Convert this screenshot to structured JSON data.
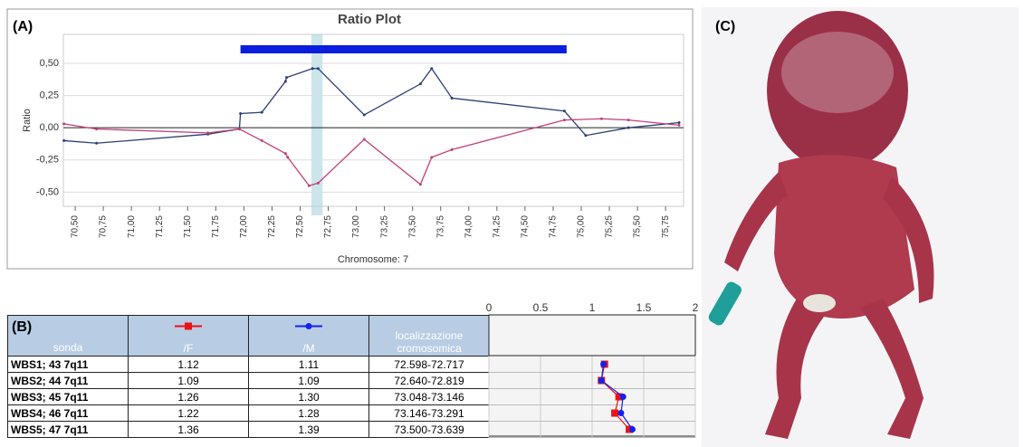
{
  "panel_labels": [
    "(A)",
    "(B)",
    "(C)"
  ],
  "chart_data": [
    {
      "type": "line",
      "title": "Ratio Plot",
      "ylabel": "Ratio",
      "xlabel": "Chromosome: 7",
      "xlim": [
        70.395,
        75.91
      ],
      "ylim": [
        -0.61,
        0.725
      ],
      "xticks": [
        {
          "value": 70.5,
          "label": "70,50"
        },
        {
          "value": 70.75,
          "label": "70,75"
        },
        {
          "value": 71,
          "label": "71,00"
        },
        {
          "value": 71.25,
          "label": "71,25"
        },
        {
          "value": 71.5,
          "label": "71,50"
        },
        {
          "value": 71.75,
          "label": "71,75"
        },
        {
          "value": 72,
          "label": "72,00"
        },
        {
          "value": 72.25,
          "label": "72,25"
        },
        {
          "value": 72.5,
          "label": "72,50"
        },
        {
          "value": 72.75,
          "label": "72,75"
        },
        {
          "value": 73,
          "label": "73,00"
        },
        {
          "value": 73.25,
          "label": "73,25"
        },
        {
          "value": 73.5,
          "label": "73,50"
        },
        {
          "value": 73.75,
          "label": "73,75"
        },
        {
          "value": 74,
          "label": "74,00"
        },
        {
          "value": 74.25,
          "label": "74,25"
        },
        {
          "value": 74.5,
          "label": "74,50"
        },
        {
          "value": 74.75,
          "label": "74,75"
        },
        {
          "value": 75,
          "label": "75,00"
        },
        {
          "value": 75.25,
          "label": "75,25"
        },
        {
          "value": 75.5,
          "label": "75,50"
        },
        {
          "value": 75.75,
          "label": "75,75"
        }
      ],
      "yticks": [
        {
          "value": 0.5,
          "label": "0,50"
        },
        {
          "value": 0.25,
          "label": "0,25"
        },
        {
          "value": 0,
          "label": "0,00"
        },
        {
          "value": -0.25,
          "label": "-0,25"
        },
        {
          "value": -0.5,
          "label": "-0,50"
        }
      ],
      "region": [
        71.97,
        74.87
      ],
      "region_color": "#0a1ee0",
      "highlight": [
        72.6,
        72.7
      ],
      "highlight_color": "#a8d4dc",
      "series": [
        {
          "color": "#2c3e74",
          "x": [
            70.4,
            70.69,
            71.68,
            71.96,
            71.97,
            72.16,
            72.37,
            72.38,
            72.61,
            72.66,
            73.07,
            73.57,
            73.67,
            73.85,
            74.85,
            75.04,
            75.42,
            75.87
          ],
          "values": [
            -0.1,
            -0.12,
            -0.05,
            -0.01,
            0.11,
            0.12,
            0.36,
            0.39,
            0.46,
            0.46,
            0.1,
            0.34,
            0.46,
            0.23,
            0.13,
            -0.06,
            0,
            0.04
          ]
        },
        {
          "color": "#c2407a",
          "x": [
            70.4,
            70.69,
            71.68,
            71.96,
            72.16,
            72.37,
            72.39,
            72.58,
            72.66,
            73.07,
            73.57,
            73.67,
            73.85,
            74.85,
            75.18,
            75.42,
            75.87
          ],
          "values": [
            0.03,
            -0.01,
            -0.04,
            -0.01,
            -0.1,
            -0.2,
            -0.23,
            -0.45,
            -0.43,
            -0.09,
            -0.44,
            -0.23,
            -0.17,
            0.06,
            0.07,
            0.06,
            0.02
          ]
        }
      ]
    },
    {
      "type": "line",
      "orientation": "horizontal",
      "categories": [
        "WBS1; 43 7q11",
        "WBS2; 44 7q11",
        "WBS3; 45 7q11",
        "WBS4; 46 7q11",
        "WBS5; 47 7q11"
      ],
      "xlim": [
        0,
        2
      ],
      "xticks": [
        0,
        0.5,
        1,
        1.5,
        2
      ],
      "series": [
        {
          "name": "/F",
          "color": "#ee1111",
          "marker": "square",
          "values": [
            1.12,
            1.09,
            1.26,
            1.22,
            1.36
          ],
          "value_labels": [
            "1.12",
            "1.09",
            "1.26",
            "1.22",
            "1.36"
          ]
        },
        {
          "name": "/M",
          "color": "#1122ee",
          "marker": "circle",
          "values": [
            1.11,
            1.09,
            1.3,
            1.28,
            1.39
          ],
          "value_labels": [
            "1.11",
            "1.09",
            "1.30",
            "1.28",
            "1.39"
          ]
        }
      ]
    }
  ],
  "table": {
    "header": [
      "sonda",
      "localizzazione cromosomica"
    ],
    "locations": [
      "72.598-72.717",
      "72.640-72.819",
      "73.048-73.146",
      "73.146-73.291",
      "73.500-73.639"
    ]
  }
}
